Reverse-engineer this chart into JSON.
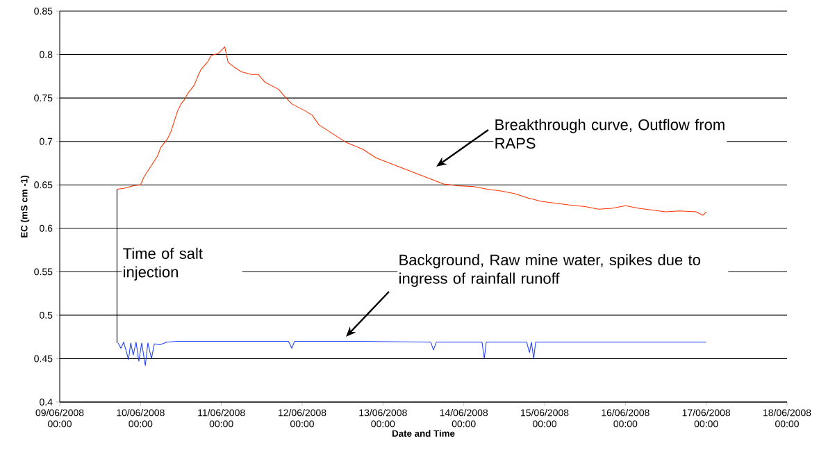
{
  "chart_data": {
    "type": "line",
    "xlabel": "Date and Time",
    "ylabel": "EC (mS cm -1)",
    "xlim": [
      "2008-06-09T00:00",
      "2008-06-18T00:00"
    ],
    "xticks": [
      {
        "value": "2008-06-09T00:00",
        "label": "09/06/2008 00:00"
      },
      {
        "value": "2008-06-10T00:00",
        "label": "10/06/2008 00:00"
      },
      {
        "value": "2008-06-11T00:00",
        "label": "11/06/2008 00:00"
      },
      {
        "value": "2008-06-12T00:00",
        "label": "12/06/2008 00:00"
      },
      {
        "value": "2008-06-13T00:00",
        "label": "13/06/2008 00:00"
      },
      {
        "value": "2008-06-14T00:00",
        "label": "14/06/2008 00:00"
      },
      {
        "value": "2008-06-15T00:00",
        "label": "15/06/2008 00:00"
      },
      {
        "value": "2008-06-16T00:00",
        "label": "16/06/2008 00:00"
      },
      {
        "value": "2008-06-17T00:00",
        "label": "17/06/2008 00:00"
      },
      {
        "value": "2008-06-18T00:00",
        "label": "18/06/2008 00:00"
      }
    ],
    "ylim": [
      0.4,
      0.85
    ],
    "yticks": [
      0.4,
      0.45,
      0.5,
      0.55,
      0.6,
      0.65,
      0.7,
      0.75,
      0.8,
      0.85
    ],
    "grid": "y",
    "series": [
      {
        "color": "#ff3300",
        "x": [
          "2008-06-09T17:00",
          "2008-06-09T19:00",
          "2008-06-09T22:00",
          "2008-06-10T00:00",
          "2008-06-10T01:00",
          "2008-06-10T03:00",
          "2008-06-10T05:00",
          "2008-06-10T06:00",
          "2008-06-10T08:00",
          "2008-06-10T09:00",
          "2008-06-10T10:00",
          "2008-06-10T11:00",
          "2008-06-10T12:00",
          "2008-06-10T13:00",
          "2008-06-10T14:00",
          "2008-06-10T16:00",
          "2008-06-10T17:00",
          "2008-06-10T18:00",
          "2008-06-10T20:00",
          "2008-06-10T21:00",
          "2008-06-10T22:00",
          "2008-06-10T23:00",
          "2008-06-11T01:00",
          "2008-06-11T02:00",
          "2008-06-11T04:00",
          "2008-06-11T06:00",
          "2008-06-11T09:00",
          "2008-06-11T11:00",
          "2008-06-11T13:00",
          "2008-06-11T17:00",
          "2008-06-11T19:00",
          "2008-06-11T21:00",
          "2008-06-12T01:00",
          "2008-06-12T03:00",
          "2008-06-12T05:00",
          "2008-06-12T09:00",
          "2008-06-12T13:00",
          "2008-06-12T18:00",
          "2008-06-12T22:00",
          "2008-06-13T02:00",
          "2008-06-13T06:00",
          "2008-06-13T10:00",
          "2008-06-13T14:00",
          "2008-06-13T18:00",
          "2008-06-13T22:00",
          "2008-06-14T03:00",
          "2008-06-14T07:00",
          "2008-06-14T11:00",
          "2008-06-14T15:00",
          "2008-06-14T19:00",
          "2008-06-14T23:00",
          "2008-06-15T03:00",
          "2008-06-15T07:00",
          "2008-06-15T12:00",
          "2008-06-15T16:00",
          "2008-06-15T20:00",
          "2008-06-16T00:00",
          "2008-06-16T04:00",
          "2008-06-16T08:00",
          "2008-06-16T12:00",
          "2008-06-16T16:00",
          "2008-06-16T21:00",
          "2008-06-16T23:00",
          "2008-06-17T00:00"
        ],
        "values": [
          0.645,
          0.646,
          0.649,
          0.65,
          0.659,
          0.671,
          0.683,
          0.693,
          0.703,
          0.711,
          0.723,
          0.735,
          0.743,
          0.748,
          0.755,
          0.765,
          0.775,
          0.783,
          0.792,
          0.799,
          0.8,
          0.801,
          0.809,
          0.791,
          0.785,
          0.78,
          0.777,
          0.777,
          0.768,
          0.76,
          0.751,
          0.743,
          0.735,
          0.73,
          0.719,
          0.709,
          0.699,
          0.691,
          0.681,
          0.675,
          0.669,
          0.663,
          0.657,
          0.651,
          0.649,
          0.648,
          0.645,
          0.643,
          0.64,
          0.635,
          0.631,
          0.629,
          0.627,
          0.625,
          0.622,
          0.623,
          0.626,
          0.623,
          0.621,
          0.619,
          0.62,
          0.619,
          0.615,
          0.619
        ]
      },
      {
        "color": "#1f3fff",
        "x": [
          "2008-06-09T17:20",
          "2008-06-09T18:10",
          "2008-06-09T19:00",
          "2008-06-09T20:25",
          "2008-06-09T21:05",
          "2008-06-09T21:50",
          "2008-06-09T22:40",
          "2008-06-09T23:30",
          "2008-06-10T00:20",
          "2008-06-10T01:25",
          "2008-06-10T02:10",
          "2008-06-10T03:15",
          "2008-06-10T04:05",
          "2008-06-10T05:45",
          "2008-06-10T07:45",
          "2008-06-10T10:50",
          "2008-06-10T20:10",
          "2008-06-11T19:55",
          "2008-06-11T20:55",
          "2008-06-11T21:45",
          "2008-06-12T17:35",
          "2008-06-13T14:10",
          "2008-06-13T15:00",
          "2008-06-13T15:50",
          "2008-06-14T05:25",
          "2008-06-14T06:05",
          "2008-06-14T06:40",
          "2008-06-14T18:40",
          "2008-06-14T19:30",
          "2008-06-14T20:05",
          "2008-06-14T20:45",
          "2008-06-14T21:20",
          "2008-06-15T13:40",
          "2008-06-16T10:15",
          "2008-06-17T00:00"
        ],
        "values": [
          0.468,
          0.462,
          0.469,
          0.449,
          0.468,
          0.454,
          0.469,
          0.447,
          0.468,
          0.442,
          0.468,
          0.45,
          0.467,
          0.466,
          0.469,
          0.47,
          0.47,
          0.47,
          0.462,
          0.47,
          0.47,
          0.469,
          0.46,
          0.469,
          0.469,
          0.45,
          0.469,
          0.469,
          0.457,
          0.469,
          0.45,
          0.469,
          0.469,
          0.469,
          0.469
        ]
      }
    ],
    "ref_lines": [
      {
        "axis": "x",
        "value": "2008-06-09T17:00",
        "label": "Time of salt injection",
        "color": "#000000"
      }
    ],
    "annotations": [
      "Breakthrough curve, Outflow from RAPS",
      "Background, Raw mine water, spikes due to ingress of rainfall runoff"
    ]
  }
}
